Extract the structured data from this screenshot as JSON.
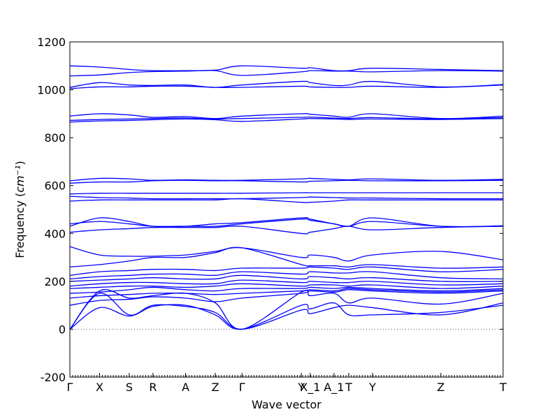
{
  "chart_data": {
    "type": "line",
    "xlabel": "Wave vector",
    "ylabel": "Frequency",
    "ylabel_unit": "cm⁻¹",
    "ylim": [
      -200,
      1200
    ],
    "yticks": [
      -200,
      0,
      200,
      400,
      600,
      800,
      1000,
      1200
    ],
    "xlim": [
      0,
      14.6
    ],
    "xticks": [
      {
        "label": "Γ",
        "x": 0
      },
      {
        "label": "X",
        "x": 1
      },
      {
        "label": "S",
        "x": 2
      },
      {
        "label": "R",
        "x": 2.8
      },
      {
        "label": "A",
        "x": 3.9
      },
      {
        "label": "Z",
        "x": 4.9
      },
      {
        "label": "Γ",
        "x": 5.8
      },
      {
        "label": "Y",
        "x": 7.8
      },
      {
        "label": "X_1",
        "x": 8.1
      },
      {
        "label": "A_1",
        "x": 8.9
      },
      {
        "label": "T",
        "x": 9.4
      },
      {
        "label": "Y",
        "x": 10.2
      },
      {
        "label": "Z",
        "x": 12.5
      },
      {
        "label": "T",
        "x": 14.6
      }
    ],
    "zero_line": 0,
    "color": "#0000ff",
    "series": [
      {
        "x": [
          0,
          1,
          2,
          2.8,
          3.9,
          4.9,
          5.8,
          7.8,
          8.1,
          8.9,
          9.4,
          10.2,
          12.5,
          14.6
        ],
        "y": [
          0,
          90,
          55,
          95,
          100,
          60,
          0,
          100,
          85,
          110,
          60,
          60,
          70,
          100
        ]
      },
      {
        "x": [
          0,
          1,
          2,
          2.8,
          3.9,
          4.9,
          5.8,
          7.8,
          8.1,
          8.9,
          9.4,
          10.2,
          12.5,
          14.6
        ],
        "y": [
          0,
          150,
          60,
          100,
          95,
          70,
          0,
          80,
          65,
          90,
          100,
          90,
          60,
          110
        ]
      },
      {
        "x": [
          0,
          1,
          2,
          2.8,
          3.9,
          4.9,
          5.8,
          7.8,
          8.1,
          8.9,
          9.4,
          10.2,
          12.5,
          14.6
        ],
        "y": [
          0,
          160,
          130,
          140,
          150,
          110,
          0,
          155,
          140,
          150,
          110,
          130,
          105,
          150
        ]
      },
      {
        "x": [
          0,
          1,
          2,
          2.8,
          3.9,
          4.9,
          5.8,
          7.8,
          8.1,
          8.9,
          9.4,
          10.2,
          12.5,
          14.6
        ],
        "y": [
          100,
          120,
          125,
          135,
          130,
          115,
          130,
          150,
          160,
          155,
          165,
          160,
          150,
          160
        ]
      },
      {
        "x": [
          0,
          1,
          2,
          2.8,
          3.9,
          4.9,
          5.8,
          7.8,
          8.1,
          8.9,
          9.4,
          10.2,
          12.5,
          14.6
        ],
        "y": [
          130,
          140,
          145,
          150,
          150,
          145,
          150,
          160,
          165,
          160,
          170,
          165,
          155,
          165
        ]
      },
      {
        "x": [
          0,
          1,
          2,
          2.8,
          3.9,
          4.9,
          5.8,
          7.8,
          8.1,
          8.9,
          9.4,
          10.2,
          12.5,
          14.6
        ],
        "y": [
          150,
          155,
          165,
          175,
          165,
          160,
          170,
          170,
          175,
          170,
          175,
          170,
          160,
          170
        ]
      },
      {
        "x": [
          0,
          1,
          2,
          2.8,
          3.9,
          4.9,
          5.8,
          7.8,
          8.1,
          8.9,
          9.4,
          10.2,
          12.5,
          14.6
        ],
        "y": [
          170,
          175,
          180,
          180,
          175,
          180,
          190,
          180,
          185,
          185,
          180,
          185,
          170,
          180
        ]
      },
      {
        "x": [
          0,
          1,
          2,
          2.8,
          3.9,
          4.9,
          5.8,
          7.8,
          8.1,
          8.9,
          9.4,
          10.2,
          12.5,
          14.6
        ],
        "y": [
          180,
          190,
          195,
          195,
          190,
          190,
          205,
          195,
          200,
          195,
          195,
          200,
          185,
          190
        ]
      },
      {
        "x": [
          0,
          1,
          2,
          2.8,
          3.9,
          4.9,
          5.8,
          7.8,
          8.1,
          8.9,
          9.4,
          10.2,
          12.5,
          14.6
        ],
        "y": [
          200,
          205,
          210,
          215,
          210,
          210,
          225,
          210,
          220,
          215,
          210,
          215,
          200,
          200
        ]
      },
      {
        "x": [
          0,
          1,
          2,
          2.8,
          3.9,
          4.9,
          5.8,
          7.8,
          8.1,
          8.9,
          9.4,
          10.2,
          12.5,
          14.6
        ],
        "y": [
          210,
          220,
          225,
          230,
          230,
          225,
          240,
          230,
          240,
          235,
          235,
          240,
          215,
          210
        ]
      },
      {
        "x": [
          0,
          1,
          2,
          2.8,
          3.9,
          4.9,
          5.8,
          7.8,
          8.1,
          8.9,
          9.4,
          10.2,
          12.5,
          14.6
        ],
        "y": [
          225,
          240,
          245,
          250,
          250,
          245,
          255,
          255,
          260,
          255,
          250,
          260,
          240,
          250
        ]
      },
      {
        "x": [
          0,
          1,
          2,
          2.8,
          3.9,
          4.9,
          5.8,
          7.8,
          8.1,
          8.9,
          9.4,
          10.2,
          12.5,
          14.6
        ],
        "y": [
          260,
          270,
          285,
          300,
          300,
          320,
          340,
          270,
          265,
          265,
          260,
          270,
          255,
          260
        ]
      },
      {
        "x": [
          0,
          1,
          2,
          2.8,
          3.9,
          4.9,
          5.8,
          7.8,
          8.1,
          8.9,
          9.4,
          10.2,
          12.5,
          14.6
        ],
        "y": [
          345,
          310,
          305,
          305,
          310,
          325,
          340,
          300,
          310,
          300,
          285,
          310,
          325,
          290
        ]
      },
      {
        "x": [
          0,
          1,
          2,
          2.8,
          3.9,
          4.9,
          5.8,
          7.8,
          8.1,
          8.9,
          9.4,
          10.2,
          12.5,
          14.6
        ],
        "y": [
          405,
          415,
          420,
          425,
          425,
          425,
          430,
          400,
          405,
          420,
          430,
          415,
          425,
          430
        ]
      },
      {
        "x": [
          0,
          1,
          2,
          2.8,
          3.9,
          4.9,
          5.8,
          7.8,
          8.1,
          8.9,
          9.4,
          10.2,
          12.5,
          14.6
        ],
        "y": [
          440,
          450,
          440,
          430,
          430,
          430,
          440,
          460,
          455,
          440,
          430,
          450,
          430,
          430
        ]
      },
      {
        "x": [
          0,
          1,
          2,
          2.8,
          3.9,
          4.9,
          5.8,
          7.8,
          8.1,
          8.9,
          9.4,
          10.2,
          12.5,
          14.6
        ],
        "y": [
          430,
          465,
          450,
          430,
          430,
          440,
          445,
          465,
          460,
          440,
          430,
          465,
          430,
          432
        ]
      },
      {
        "x": [
          0,
          1,
          2,
          2.8,
          3.9,
          4.9,
          5.8,
          7.8,
          8.1,
          8.9,
          9.4,
          10.2,
          12.5,
          14.6
        ],
        "y": [
          535,
          540,
          540,
          540,
          540,
          540,
          545,
          530,
          530,
          535,
          540,
          540,
          540,
          540
        ]
      },
      {
        "x": [
          0,
          1,
          2,
          2.8,
          3.9,
          4.9,
          5.8,
          7.8,
          8.1,
          8.9,
          9.4,
          10.2,
          12.5,
          14.6
        ],
        "y": [
          555,
          550,
          548,
          545,
          545,
          545,
          545,
          550,
          552,
          550,
          548,
          548,
          545,
          545
        ]
      },
      {
        "x": [
          0,
          1,
          2,
          2.8,
          3.9,
          4.9,
          5.8,
          7.8,
          8.1,
          8.9,
          9.4,
          10.2,
          12.5,
          14.6
        ],
        "y": [
          565,
          568,
          568,
          568,
          568,
          568,
          568,
          570,
          570,
          570,
          570,
          570,
          570,
          570
        ]
      },
      {
        "x": [
          0,
          1,
          2,
          2.8,
          3.9,
          4.9,
          5.8,
          7.8,
          8.1,
          8.9,
          9.4,
          10.2,
          12.5,
          14.6
        ],
        "y": [
          610,
          615,
          615,
          620,
          622,
          620,
          620,
          615,
          618,
          620,
          622,
          620,
          620,
          622
        ]
      },
      {
        "x": [
          0,
          1,
          2,
          2.8,
          3.9,
          4.9,
          5.8,
          7.8,
          8.1,
          8.9,
          9.4,
          10.2,
          12.5,
          14.6
        ],
        "y": [
          620,
          630,
          628,
          622,
          624,
          622,
          622,
          628,
          630,
          626,
          624,
          628,
          622,
          626
        ]
      },
      {
        "x": [
          0,
          1,
          2,
          2.8,
          3.9,
          4.9,
          5.8,
          7.8,
          8.1,
          8.9,
          9.4,
          10.2,
          12.5,
          14.6
        ],
        "y": [
          865,
          870,
          872,
          875,
          878,
          875,
          868,
          878,
          880,
          878,
          876,
          878,
          876,
          880
        ]
      },
      {
        "x": [
          0,
          1,
          2,
          2.8,
          3.9,
          4.9,
          5.8,
          7.8,
          8.1,
          8.9,
          9.4,
          10.2,
          12.5,
          14.6
        ],
        "y": [
          872,
          876,
          878,
          880,
          882,
          878,
          880,
          885,
          886,
          882,
          880,
          884,
          878,
          884
        ]
      },
      {
        "x": [
          0,
          1,
          2,
          2.8,
          3.9,
          4.9,
          5.8,
          7.8,
          8.1,
          8.9,
          9.4,
          10.2,
          12.5,
          14.6
        ],
        "y": [
          890,
          900,
          895,
          885,
          888,
          880,
          890,
          900,
          898,
          890,
          885,
          900,
          880,
          890
        ]
      },
      {
        "x": [
          0,
          1,
          2,
          2.8,
          3.9,
          4.9,
          5.8,
          7.8,
          8.1,
          8.9,
          9.4,
          10.2,
          12.5,
          14.6
        ],
        "y": [
          1005,
          1012,
          1012,
          1015,
          1015,
          1010,
          1010,
          1015,
          1012,
          1010,
          1010,
          1015,
          1010,
          1020
        ]
      },
      {
        "x": [
          0,
          1,
          2,
          2.8,
          3.9,
          4.9,
          5.8,
          7.8,
          8.1,
          8.9,
          9.4,
          10.2,
          12.5,
          14.6
        ],
        "y": [
          1010,
          1030,
          1020,
          1018,
          1020,
          1010,
          1020,
          1035,
          1030,
          1018,
          1020,
          1035,
          1012,
          1022
        ]
      },
      {
        "x": [
          0,
          1,
          2,
          2.8,
          3.9,
          4.9,
          5.8,
          7.8,
          8.1,
          8.9,
          9.4,
          10.2,
          12.5,
          14.6
        ],
        "y": [
          1058,
          1062,
          1072,
          1076,
          1078,
          1080,
          1060,
          1075,
          1080,
          1078,
          1078,
          1075,
          1080,
          1078
        ]
      },
      {
        "x": [
          0,
          1,
          2,
          2.8,
          3.9,
          4.9,
          5.8,
          7.8,
          8.1,
          8.9,
          9.4,
          10.2,
          12.5,
          14.6
        ],
        "y": [
          1100,
          1095,
          1085,
          1080,
          1080,
          1082,
          1100,
          1090,
          1092,
          1080,
          1080,
          1090,
          1085,
          1080
        ]
      }
    ]
  }
}
